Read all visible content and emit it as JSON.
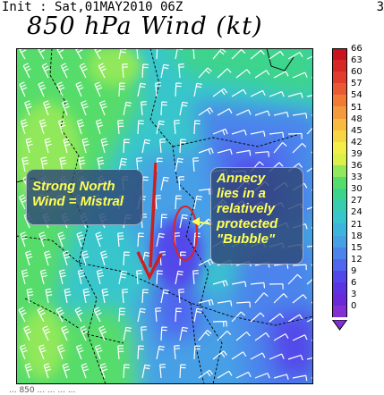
{
  "header": {
    "init_text": "Init : Sat,01MAY2010 06Z",
    "corner_text": "3",
    "title": "850 hPa Wind (kt)"
  },
  "colorbar": {
    "labels": [
      "66",
      "63",
      "60",
      "57",
      "54",
      "51",
      "48",
      "45",
      "42",
      "39",
      "36",
      "33",
      "30",
      "27",
      "24",
      "21",
      "18",
      "15",
      "12",
      "9",
      "6",
      "3",
      "0"
    ],
    "colors": [
      "#c8141e",
      "#d72828",
      "#e23c2c",
      "#ea5a32",
      "#f07a36",
      "#f49a3c",
      "#f8ba40",
      "#f6d642",
      "#f4ee48",
      "#dcf04a",
      "#90e85a",
      "#56dc6a",
      "#3cd48c",
      "#38ccb0",
      "#38c6cc",
      "#3cb4dc",
      "#46a0e6",
      "#4c84ec",
      "#5066ee",
      "#5248ea",
      "#5a34e2",
      "#6a28d8",
      "#8230d2"
    ]
  },
  "annotations": {
    "mistral": [
      "Strong North",
      "Wind = Mistral"
    ],
    "annecy": [
      "Annecy",
      "lies in a",
      "relatively",
      "protected",
      "\"Bubble\""
    ]
  },
  "footer": {
    "note": "... 850 ... ... ... ..."
  },
  "colors": {
    "arrow": "#cc2020",
    "annotation_text": "#ffff55",
    "annotation_box": "#2e4876",
    "circle": "#dd2222"
  },
  "icons": {
    "mistral_arrow": "down-arrow-icon",
    "annecy_pointer": "pointer-arrow-icon",
    "colorbar_end": "triangle-down-icon"
  }
}
